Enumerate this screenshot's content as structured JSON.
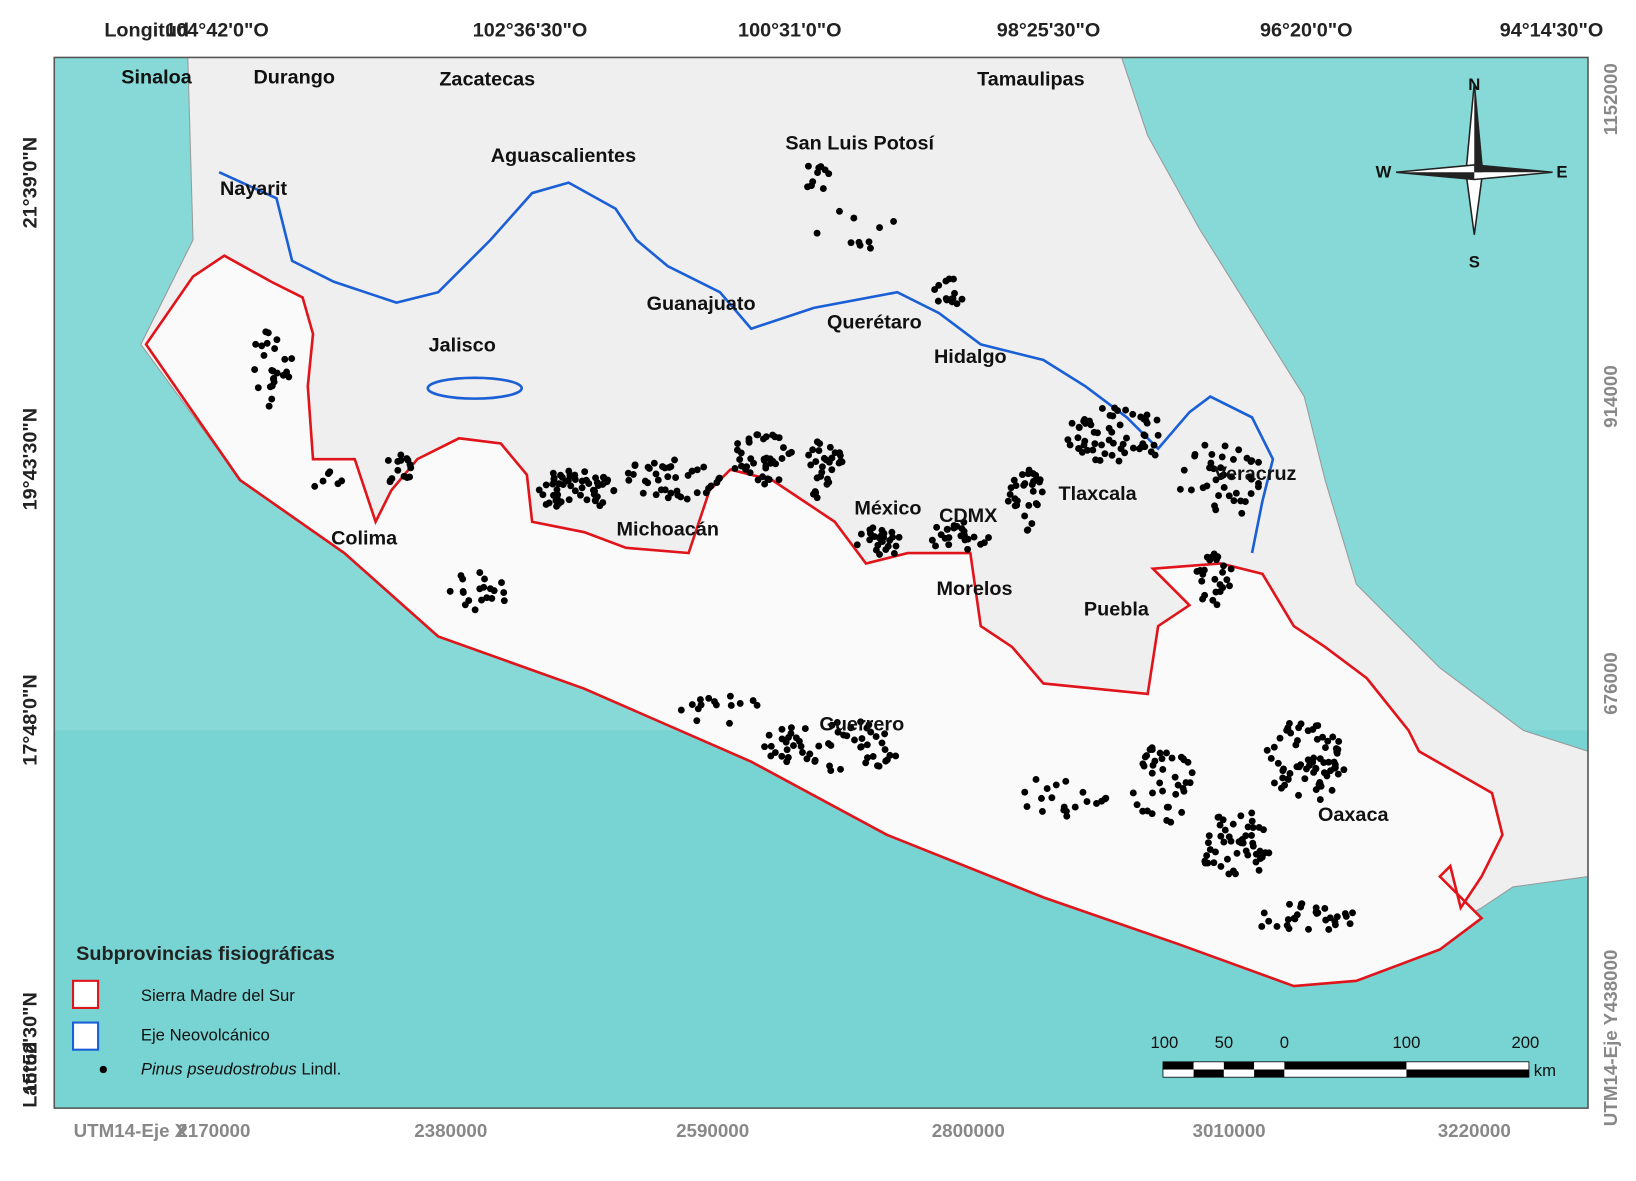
{
  "map": {
    "top_axis": {
      "title": "Longitud",
      "labels": [
        "104°42'0\"O",
        "102°36'30\"O",
        "100°31'0\"O",
        "98°25'30\"O",
        "96°20'0\"O",
        "94°14'30\"O"
      ]
    },
    "left_axis": {
      "title": "Latitud",
      "labels": [
        "21°39'0\"N",
        "19°43'30\"N",
        "17°48'0\"N",
        "15°52'30\"N"
      ]
    },
    "bottom_axis": {
      "title": "UTM14-Eje X",
      "labels": [
        2170000,
        2380000,
        2590000,
        2800000,
        3010000,
        3220000
      ]
    },
    "right_axis": {
      "title": "UTM14-Eje Y",
      "labels": [
        1152000,
        914000,
        676000,
        438000
      ]
    },
    "states": [
      "Sinaloa",
      "Durango",
      "Zacatecas",
      "Tamaulipas",
      "San Luis Potosí",
      "Aguascalientes",
      "Nayarit",
      "Guanajuato",
      "Querétaro",
      "Jalisco",
      "Hidalgo",
      "Veracruz",
      "Tlaxcala",
      "México",
      "CDMX",
      "Michoacán",
      "Colima",
      "Morelos",
      "Puebla",
      "Guerrero",
      "Oaxaca"
    ],
    "compass": {
      "north": "N",
      "south": "S",
      "east": "E",
      "west": "W"
    },
    "legend": {
      "title": "Subprovincias fisiográficas",
      "items": [
        "Sierra Madre del Sur",
        "Eje Neovolcánico"
      ],
      "points": {
        "species": "Pinus pseudostrobus",
        "author": "Lindl."
      }
    },
    "scale_bar": {
      "labels": [
        100,
        50,
        0,
        100,
        200
      ],
      "unit": "km"
    }
  }
}
